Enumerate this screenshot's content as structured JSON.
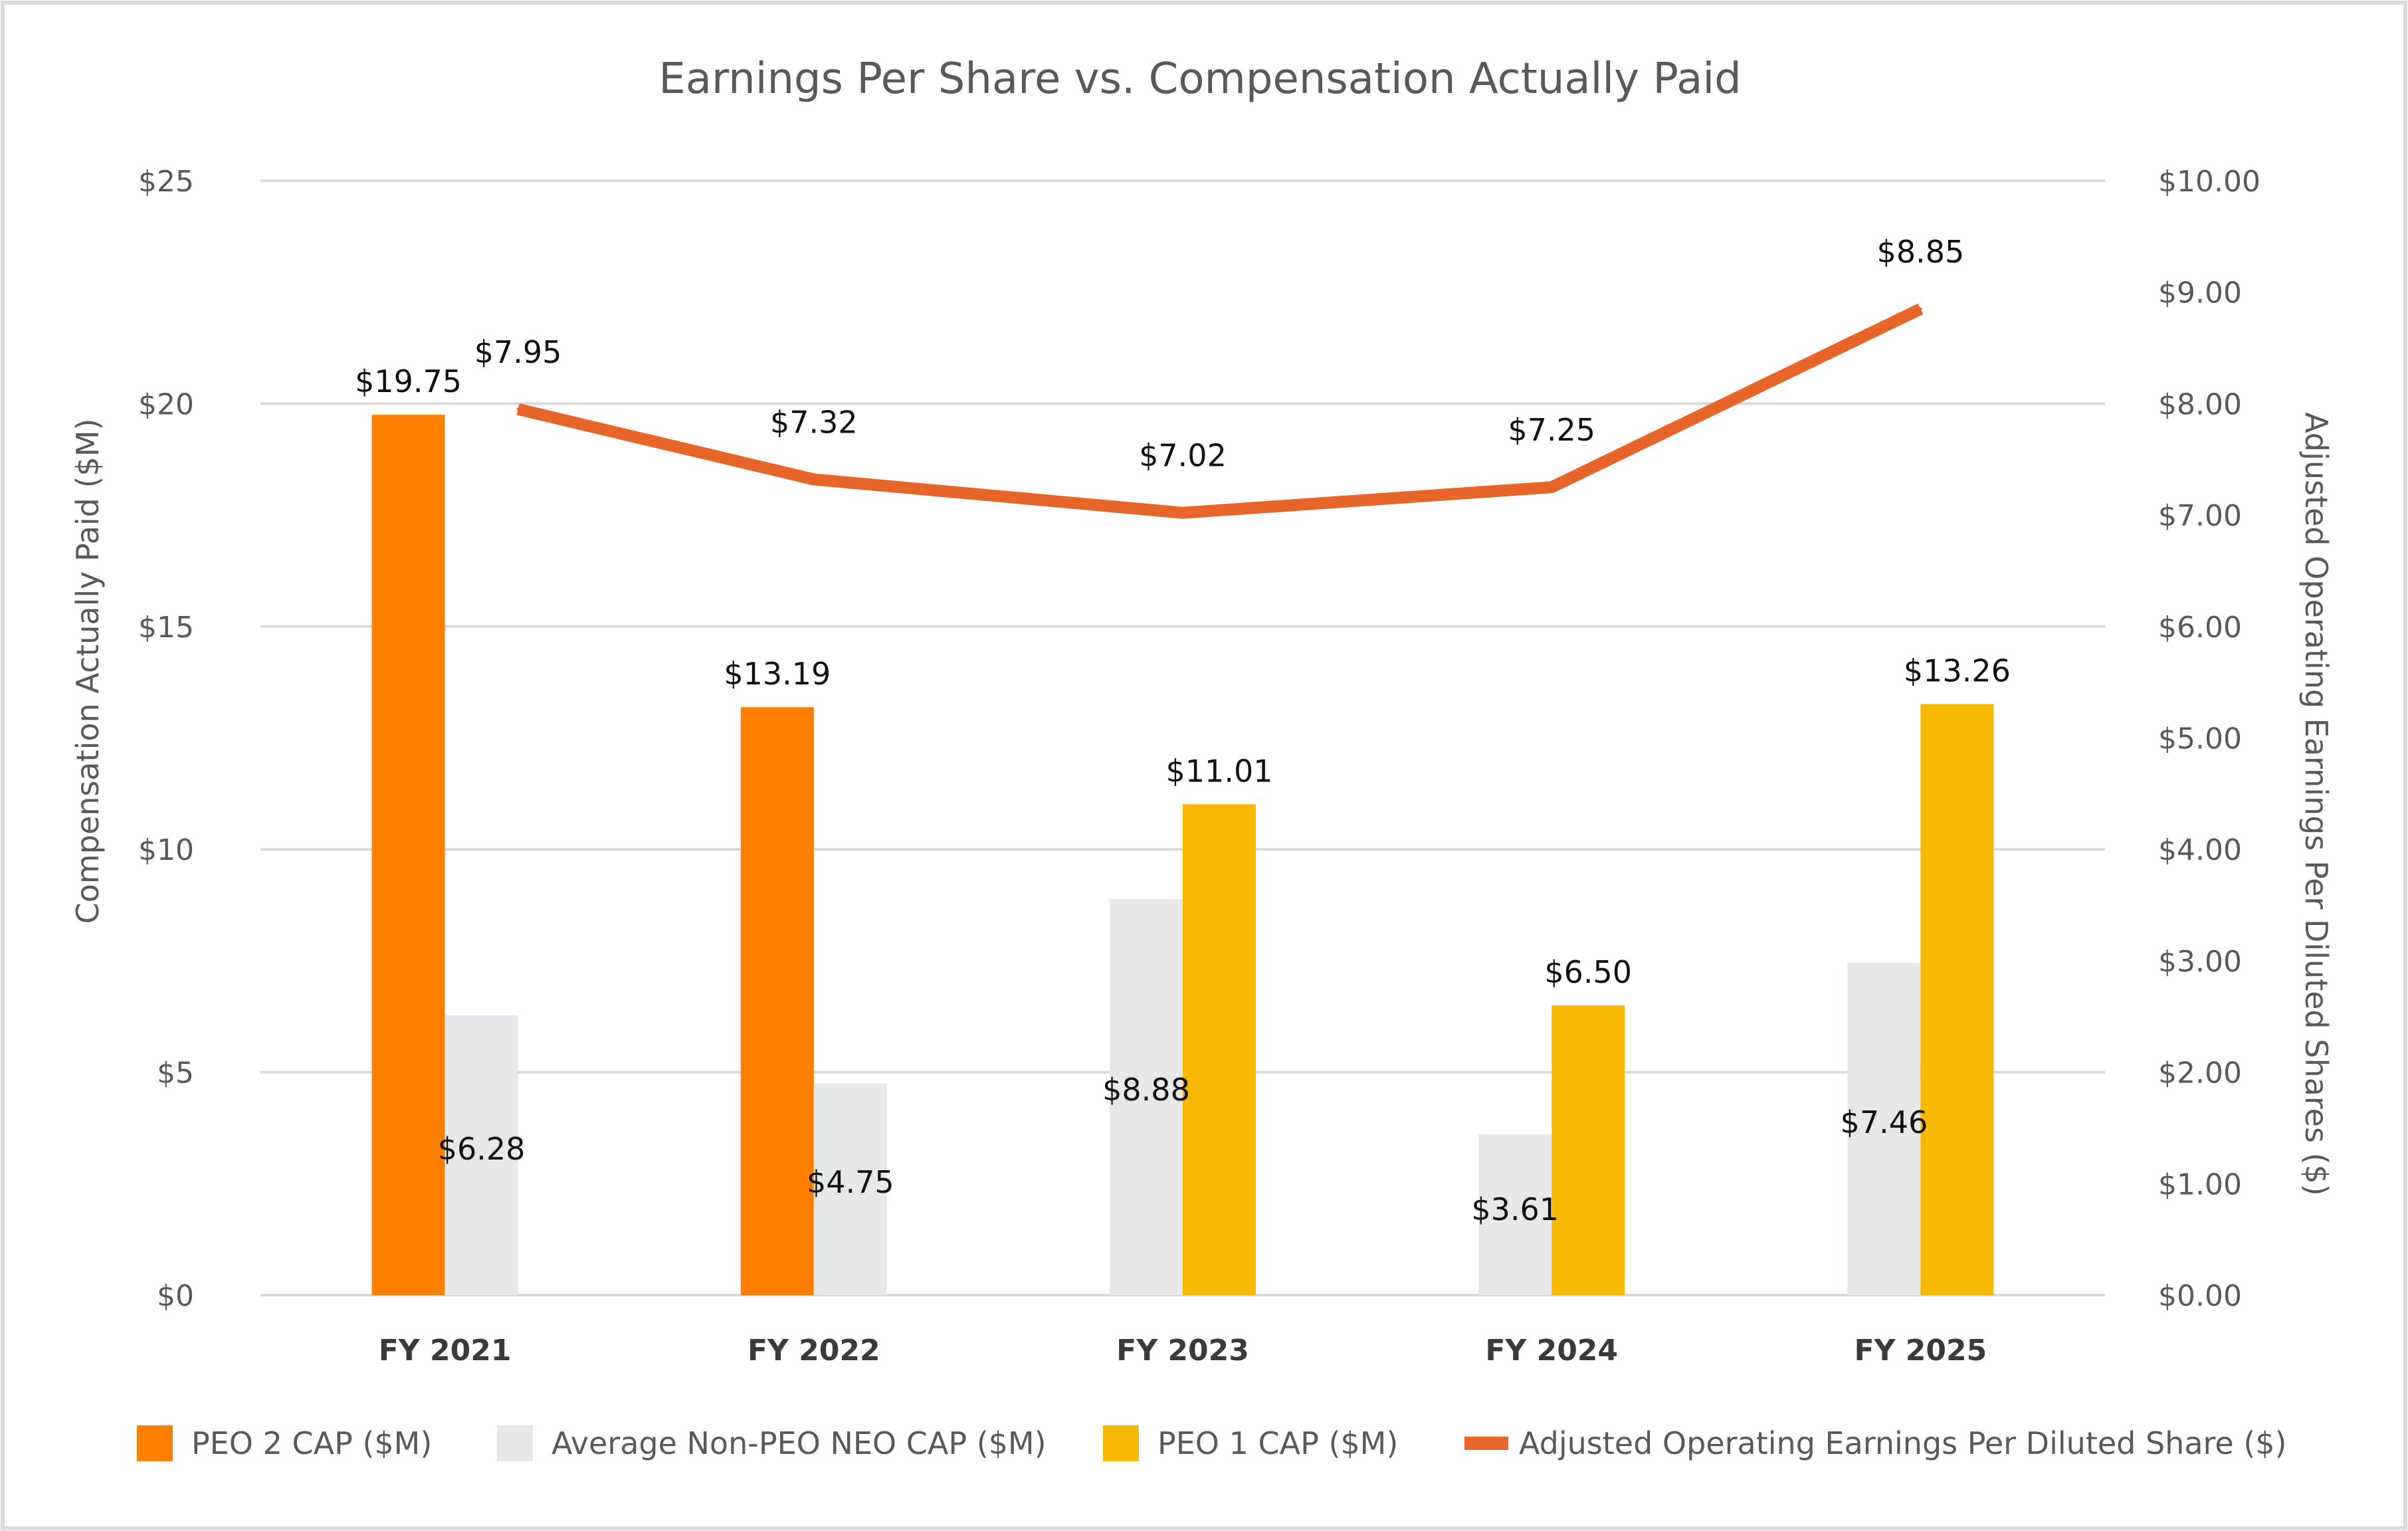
{
  "chart_data": {
    "type": "bar",
    "title": "Earnings Per Share vs. Compensation Actually Paid",
    "categories": [
      "FY 2021",
      "FY 2022",
      "FY 2023",
      "FY 2024",
      "FY 2025"
    ],
    "ylabel": "Compensation Actually Paid ($M)",
    "y2label": "Adjusted Operating Earnings Per Diluted Shares ($)",
    "ylim": [
      0,
      25
    ],
    "y2lim": [
      0,
      10
    ],
    "yticks": [
      "$0",
      "$5",
      "$10",
      "$15",
      "$20",
      "$25"
    ],
    "y2ticks": [
      "$0.00",
      "$1.00",
      "$2.00",
      "$3.00",
      "$4.00",
      "$5.00",
      "$6.00",
      "$7.00",
      "$8.00",
      "$9.00",
      "$10.00"
    ],
    "grid": true,
    "legend_position": "bottom",
    "series": [
      {
        "name": "PEO 2 CAP ($M)",
        "kind": "bar",
        "axis": "left",
        "color": "#FF8000",
        "values": [
          19.75,
          13.19,
          null,
          null,
          null
        ],
        "labels": [
          "$19.75",
          "$13.19",
          "",
          "",
          ""
        ]
      },
      {
        "name": "Average Non-PEO NEO CAP ($M)",
        "kind": "bar",
        "axis": "left",
        "color": "#E7E8EA",
        "values": [
          6.28,
          4.75,
          8.88,
          3.61,
          7.46
        ],
        "labels": [
          "$6.28",
          "$4.75",
          "$8.88",
          "$3.61",
          "$7.46"
        ]
      },
      {
        "name": "PEO 1 CAP ($M)",
        "kind": "bar",
        "axis": "left",
        "color": "#F7B800",
        "values": [
          null,
          null,
          11.01,
          6.5,
          13.26
        ],
        "labels": [
          "",
          "",
          "$11.01",
          "$6.50",
          "$13.26"
        ]
      },
      {
        "name": "Adjusted Operating Earnings Per Diluted Share ($)",
        "kind": "line",
        "axis": "right",
        "color": "#E8652A",
        "values": [
          7.95,
          7.32,
          7.02,
          7.25,
          8.85
        ],
        "labels": [
          "$7.95",
          "$7.32",
          "$7.02",
          "$7.25",
          "$8.85"
        ]
      }
    ],
    "colors": {
      "grid": "#D9D9D9",
      "border": "#D9D9D9"
    }
  }
}
